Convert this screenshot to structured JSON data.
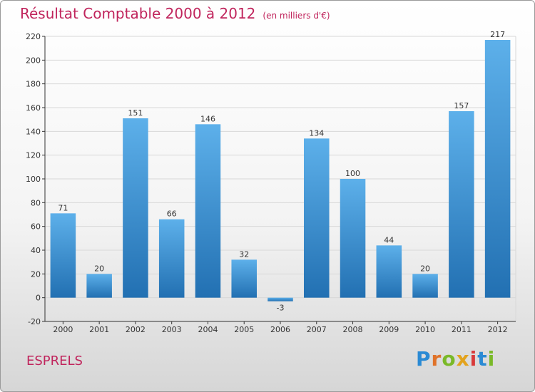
{
  "header": {
    "title": "Résultat Comptable 2000 à 2012",
    "subtitle": "(en milliers d'€)"
  },
  "footer": {
    "commune": "ESPRELS",
    "logo": [
      "P",
      "r",
      "o",
      "x",
      "i",
      "t",
      "i"
    ],
    "logo_colors": [
      "#2a8ad4",
      "#e0732a",
      "#7ab928",
      "#e3a31d",
      "#d83a3a",
      "#2a8ad4",
      "#7ab928"
    ]
  },
  "colors": {
    "bar": "#3a93d8",
    "bar_light": "#5db0ea",
    "bar_dark": "#2270b2",
    "title": "#c0245c",
    "grid": "#d8d8d8",
    "axis": "#333333"
  },
  "chart_data": {
    "type": "bar",
    "title": "Résultat Comptable 2000 à 2012",
    "subtitle": "(en milliers d'€)",
    "categories": [
      "2000",
      "2001",
      "2002",
      "2003",
      "2004",
      "2005",
      "2006",
      "2007",
      "2008",
      "2009",
      "2010",
      "2011",
      "2012"
    ],
    "values": [
      71,
      20,
      151,
      66,
      146,
      32,
      -3,
      134,
      100,
      44,
      20,
      157,
      217
    ],
    "xlabel": "",
    "ylabel": "",
    "ylim": [
      -20,
      220
    ],
    "yticks": [
      -20,
      0,
      20,
      40,
      60,
      80,
      100,
      120,
      140,
      160,
      180,
      200,
      220
    ],
    "grid": true,
    "legend": "none"
  }
}
